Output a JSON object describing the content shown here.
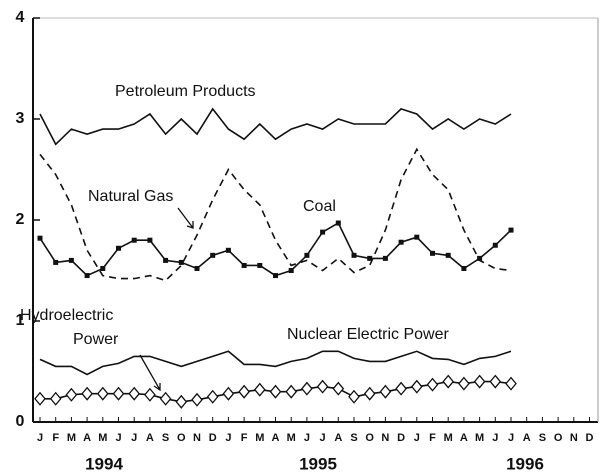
{
  "chart_data": {
    "type": "line",
    "categories": [
      "J",
      "F",
      "M",
      "A",
      "M",
      "J",
      "J",
      "A",
      "S",
      "O",
      "N",
      "D",
      "J",
      "F",
      "M",
      "A",
      "M",
      "J",
      "J",
      "A",
      "S",
      "O",
      "N",
      "D",
      "J",
      "F",
      "M",
      "A",
      "M",
      "J",
      "J",
      "A",
      "S",
      "O",
      "N",
      "D"
    ],
    "years": [
      "1994",
      "1995",
      "1996"
    ],
    "ylim": [
      0,
      4
    ],
    "yticks": [
      0,
      1,
      2,
      3,
      4
    ],
    "series": [
      {
        "name": "Petroleum Products",
        "color": "#111111",
        "dash": "solid",
        "marker": "none",
        "values": [
          3.05,
          2.75,
          2.9,
          2.85,
          2.9,
          2.9,
          2.95,
          3.05,
          2.85,
          3.0,
          2.85,
          3.1,
          2.9,
          2.8,
          2.95,
          2.8,
          2.9,
          2.95,
          2.9,
          3.0,
          2.95,
          2.95,
          2.95,
          3.1,
          3.05,
          2.9,
          3.0,
          2.9,
          3.0,
          2.95,
          3.05,
          null,
          null,
          null,
          null,
          null
        ]
      },
      {
        "name": "Natural Gas",
        "color": "#111111",
        "dash": "dashed",
        "marker": "none",
        "values": [
          2.65,
          2.45,
          2.15,
          1.7,
          1.45,
          1.42,
          1.42,
          1.45,
          1.4,
          1.55,
          1.85,
          2.2,
          2.5,
          2.3,
          2.15,
          1.8,
          1.55,
          1.6,
          1.5,
          1.62,
          1.48,
          1.55,
          1.9,
          2.4,
          2.7,
          2.45,
          2.3,
          1.9,
          1.6,
          1.52,
          1.5,
          null,
          null,
          null,
          null,
          null
        ]
      },
      {
        "name": "Coal",
        "color": "#111111",
        "dash": "solid",
        "marker": "square",
        "values": [
          1.82,
          1.58,
          1.6,
          1.45,
          1.52,
          1.72,
          1.8,
          1.8,
          1.6,
          1.58,
          1.52,
          1.65,
          1.7,
          1.55,
          1.55,
          1.45,
          1.5,
          1.65,
          1.88,
          1.97,
          1.65,
          1.62,
          1.62,
          1.78,
          1.83,
          1.67,
          1.65,
          1.52,
          1.62,
          1.75,
          1.9,
          null,
          null,
          null,
          null,
          null
        ]
      },
      {
        "name": "Nuclear Electric Power",
        "color": "#111111",
        "dash": "solid",
        "marker": "none",
        "values": [
          0.62,
          0.55,
          0.55,
          0.47,
          0.55,
          0.58,
          0.65,
          0.65,
          0.6,
          0.55,
          0.6,
          0.65,
          0.7,
          0.57,
          0.57,
          0.55,
          0.6,
          0.63,
          0.7,
          0.7,
          0.63,
          0.6,
          0.6,
          0.65,
          0.7,
          0.63,
          0.62,
          0.57,
          0.63,
          0.65,
          0.7,
          null,
          null,
          null,
          null,
          null
        ]
      },
      {
        "name": "Hydroelectric Power",
        "color": "#111111",
        "dash": "solid",
        "marker": "diamond",
        "values": [
          0.23,
          0.23,
          0.27,
          0.28,
          0.28,
          0.28,
          0.28,
          0.27,
          0.23,
          0.2,
          0.22,
          0.25,
          0.28,
          0.3,
          0.32,
          0.3,
          0.3,
          0.33,
          0.35,
          0.33,
          0.25,
          0.28,
          0.3,
          0.33,
          0.35,
          0.37,
          0.4,
          0.38,
          0.4,
          0.4,
          0.38,
          null,
          null,
          null,
          null,
          null
        ]
      }
    ]
  }
}
